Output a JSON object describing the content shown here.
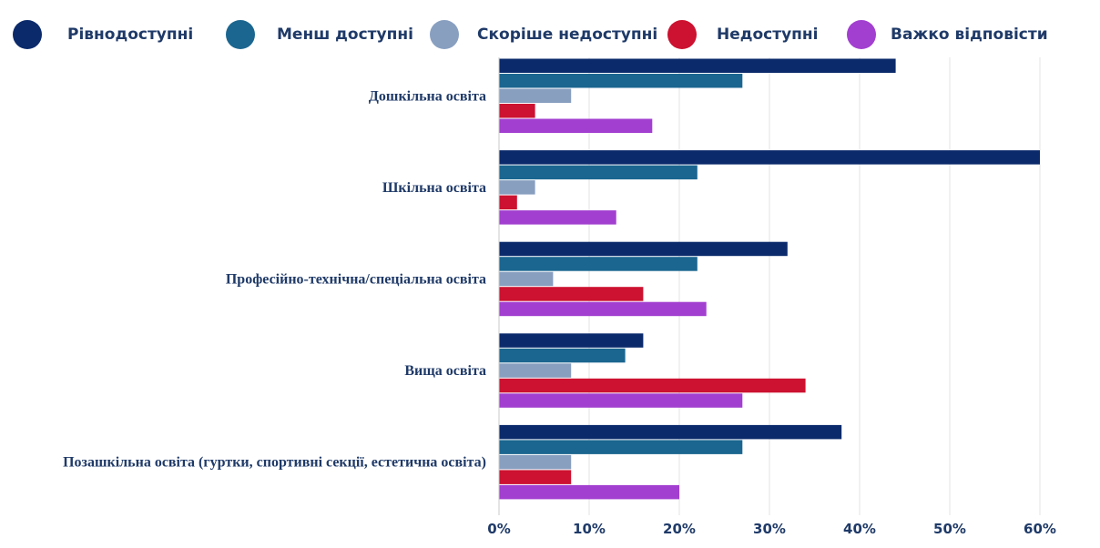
{
  "chart_data": {
    "type": "bar",
    "orientation": "horizontal",
    "categories": [
      "Дошкільна освіта",
      "Шкільна освіта",
      "Професійно-технічна/спеціальна освіта",
      "Вища освіта",
      "Позашкільна освіта (гуртки, спортивні секції, естетична освіта)"
    ],
    "series": [
      {
        "name": "Рівнодоступні",
        "color": "#0b2a6b",
        "values": [
          44,
          60,
          32,
          16,
          38
        ]
      },
      {
        "name": "Менш доступні",
        "color": "#1b6690",
        "values": [
          27,
          22,
          22,
          14,
          27
        ]
      },
      {
        "name": "Скоріше недоступні",
        "color": "#889fc0",
        "values": [
          8,
          4,
          6,
          8,
          8
        ]
      },
      {
        "name": "Недоступні",
        "color": "#cc1230",
        "values": [
          4,
          2,
          16,
          34,
          8
        ]
      },
      {
        "name": "Важко відповісти",
        "color": "#a23fd0",
        "values": [
          17,
          13,
          23,
          27,
          20
        ]
      }
    ],
    "xlim": [
      0,
      60
    ],
    "xticks": [
      0,
      10,
      20,
      30,
      40,
      50,
      60
    ],
    "tick_labels": [
      "0%",
      "10%",
      "20%",
      "30%",
      "40%",
      "50%",
      "60%"
    ],
    "grid": true,
    "legend": "top",
    "title": "",
    "xlabel": "",
    "ylabel": ""
  }
}
